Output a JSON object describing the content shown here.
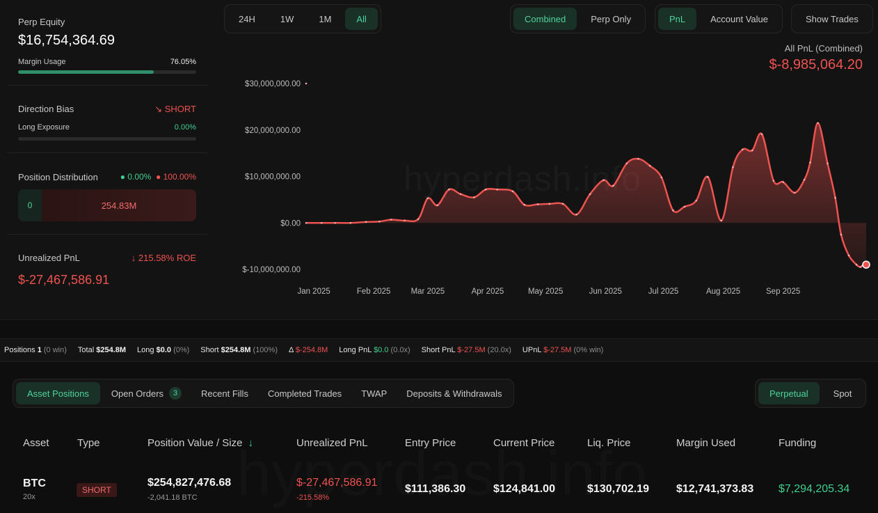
{
  "account": {
    "perp_equity_label": "Perp Equity",
    "perp_equity": "$16,754,364.69",
    "margin_usage_label": "Margin Usage",
    "margin_usage": "76.05%",
    "margin_usage_fraction": 0.7605,
    "direction_bias_label": "Direction Bias",
    "direction_bias": "SHORT",
    "long_exposure_label": "Long Exposure",
    "long_exposure": "0.00%",
    "position_distribution_label": "Position Distribution",
    "dist_long_pct": "0.00%",
    "dist_short_pct": "100.00%",
    "dist_long_value": "0",
    "dist_short_value": "254.83M",
    "unrealized_pnl_label": "Unrealized PnL",
    "roe": "215.58% ROE",
    "unrealized_pnl": "$-27,467,586.91"
  },
  "range_tabs": [
    "24H",
    "1W",
    "1M",
    "All"
  ],
  "active_range": "All",
  "mode_tabs": [
    "Combined",
    "Perp Only"
  ],
  "metric_tabs": [
    "PnL",
    "Account Value"
  ],
  "show_trades_label": "Show Trades",
  "chart_header": {
    "label": "All PnL (Combined)",
    "value": "$-8,985,064.20"
  },
  "watermark": "hyperdash.info",
  "chart_data": {
    "type": "area",
    "title": "All PnL (Combined)",
    "y_ticks": [
      "$30,000,000.00",
      "$20,000,000.00",
      "$10,000,000.00",
      "$0.00",
      "$-10,000,000.00"
    ],
    "y_tick_values": [
      30000000,
      20000000,
      10000000,
      0,
      -10000000
    ],
    "x_ticks": [
      "Jan 2025",
      "Feb 2025",
      "Mar 2025",
      "Apr 2025",
      "May 2025",
      "Jun 2025",
      "Jul 2025",
      "Aug 2025",
      "Sep 2025"
    ],
    "ylim": [
      -10000000,
      30000000
    ],
    "color": "#ef5350",
    "series": [
      {
        "x": [
          "2024-12-28",
          "2025-01-05",
          "2025-01-12",
          "2025-01-20",
          "2025-01-28",
          "2025-02-04",
          "2025-02-10",
          "2025-02-17",
          "2025-02-24",
          "2025-03-01",
          "2025-03-06",
          "2025-03-12",
          "2025-03-18",
          "2025-03-25",
          "2025-03-31",
          "2025-04-06",
          "2025-04-14",
          "2025-04-20",
          "2025-04-27",
          "2025-05-03",
          "2025-05-10",
          "2025-05-17",
          "2025-05-24",
          "2025-05-31",
          "2025-06-05",
          "2025-06-12",
          "2025-06-18",
          "2025-06-24",
          "2025-06-30",
          "2025-07-06",
          "2025-07-12",
          "2025-07-18",
          "2025-07-24",
          "2025-07-31",
          "2025-08-06",
          "2025-08-11",
          "2025-08-16",
          "2025-08-21",
          "2025-08-27",
          "2025-09-01",
          "2025-09-07",
          "2025-09-12",
          "2025-09-15",
          "2025-09-19",
          "2025-09-24",
          "2025-09-28",
          "2025-10-01",
          "2025-10-05",
          "2025-10-09",
          "2025-10-11",
          "2025-10-12",
          "2025-10-13",
          "2025-10-14"
        ],
        "values": [
          0,
          0,
          0,
          0,
          200000,
          300000,
          700000,
          500000,
          800000,
          5300000,
          3800000,
          7200000,
          6200000,
          5500000,
          7200000,
          7200000,
          6800000,
          3900000,
          4000000,
          4100000,
          4100000,
          1800000,
          6200000,
          9200000,
          8000000,
          12800000,
          13800000,
          12300000,
          9800000,
          2700000,
          3500000,
          4800000,
          9900000,
          500000,
          12000000,
          15800000,
          15600000,
          19100000,
          9100000,
          8800000,
          6500000,
          9300000,
          13000000,
          21500000,
          12800000,
          5400000,
          -2500000,
          -7000000,
          -9000000,
          -9500000,
          -9200000,
          -9000000,
          -8985064
        ]
      }
    ]
  },
  "stats_bar": {
    "positions_label": "Positions",
    "positions": "1",
    "positions_note": "(0 win)",
    "total_label": "Total",
    "total": "$254.8M",
    "long_label": "Long",
    "long": "$0.0",
    "long_note": "(0%)",
    "short_label": "Short",
    "short": "$254.8M",
    "short_note": "(100%)",
    "delta_label": "Δ",
    "delta": "$-254.8M",
    "long_pnl_label": "Long PnL",
    "long_pnl": "$0.0",
    "long_pnl_note": "(0.0x)",
    "short_pnl_label": "Short PnL",
    "short_pnl": "$-27.5M",
    "short_pnl_note": "(20.0x)",
    "upnl_label": "UPnL",
    "upnl": "$-27.5M",
    "upnl_note": "(0% win)"
  },
  "bottom_tabs": [
    {
      "label": "Asset Positions"
    },
    {
      "label": "Open Orders",
      "badge": "3"
    },
    {
      "label": "Recent Fills"
    },
    {
      "label": "Completed Trades"
    },
    {
      "label": "TWAP"
    },
    {
      "label": "Deposits & Withdrawals"
    }
  ],
  "market_tabs": [
    "Perpetual",
    "Spot"
  ],
  "table": {
    "headers": [
      "Asset",
      "Type",
      "Position Value / Size",
      "Unrealized PnL",
      "Entry Price",
      "Current Price",
      "Liq. Price",
      "Margin Used",
      "Funding"
    ],
    "sort_arrow": "↓",
    "row": {
      "asset": "BTC",
      "leverage": "20x",
      "type": "SHORT",
      "position_value": "$254,827,476.68",
      "size": "-2,041.18 BTC",
      "upnl": "$-27,467,586.91",
      "upnl_pct": "-215.58%",
      "entry": "$111,386.30",
      "current": "$124,841.00",
      "liq": "$130,702.19",
      "margin": "$12,741,373.83",
      "funding": "$7,294,205.34"
    }
  },
  "colors": {
    "accent": "#4fd39c",
    "negative": "#ef5350",
    "background": "#131313"
  }
}
